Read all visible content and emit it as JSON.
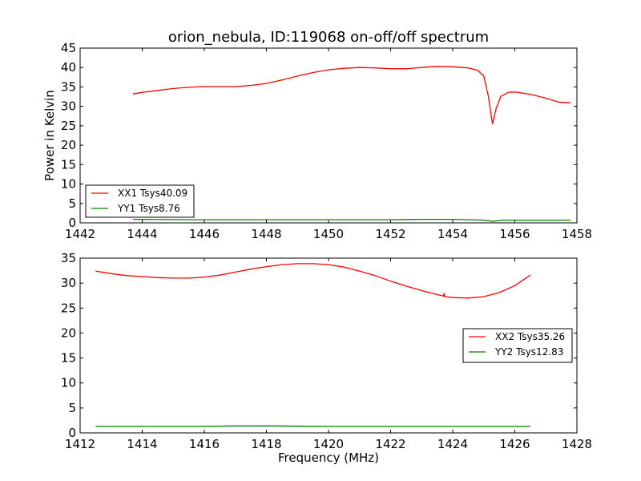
{
  "chart_data": {
    "title": "orion_nebula, ID:119068 on-off/off spectrum",
    "panels": [
      {
        "type": "line",
        "xlabel": "",
        "ylabel": "Power in Kelvin",
        "xlim": [
          1442,
          1458
        ],
        "ylim": [
          0,
          45
        ],
        "xticks": [
          1442,
          1444,
          1446,
          1448,
          1450,
          1452,
          1454,
          1456,
          1458
        ],
        "yticks": [
          0,
          5,
          10,
          15,
          20,
          25,
          30,
          35,
          40,
          45
        ],
        "legend_position": "lower-left",
        "series": [
          {
            "name": "XX1 Tsys40.09",
            "color": "#ff0000",
            "points": [
              [
                1443.7,
                33.2
              ],
              [
                1444.0,
                33.6
              ],
              [
                1444.5,
                34.1
              ],
              [
                1445.0,
                34.6
              ],
              [
                1445.5,
                34.9
              ],
              [
                1446.0,
                35.1
              ],
              [
                1446.5,
                35.1
              ],
              [
                1447.0,
                35.1
              ],
              [
                1447.5,
                35.4
              ],
              [
                1448.0,
                35.9
              ],
              [
                1448.5,
                36.8
              ],
              [
                1449.0,
                37.8
              ],
              [
                1449.5,
                38.7
              ],
              [
                1450.0,
                39.4
              ],
              [
                1450.5,
                39.8
              ],
              [
                1451.0,
                40.0
              ],
              [
                1451.5,
                39.9
              ],
              [
                1452.0,
                39.7
              ],
              [
                1452.5,
                39.7
              ],
              [
                1453.0,
                40.0
              ],
              [
                1453.5,
                40.3
              ],
              [
                1454.0,
                40.2
              ],
              [
                1454.5,
                39.9
              ],
              [
                1454.8,
                39.3
              ],
              [
                1455.0,
                37.8
              ],
              [
                1455.15,
                32.5
              ],
              [
                1455.28,
                25.5
              ],
              [
                1455.4,
                29.5
              ],
              [
                1455.55,
                32.6
              ],
              [
                1455.8,
                33.6
              ],
              [
                1456.0,
                33.7
              ],
              [
                1456.5,
                33.1
              ],
              [
                1457.0,
                32.1
              ],
              [
                1457.4,
                31.1
              ],
              [
                1457.8,
                30.9
              ]
            ]
          },
          {
            "name": "YY1 Tsys8.76",
            "color": "#008000",
            "points": [
              [
                1443.7,
                0.9
              ],
              [
                1446.0,
                0.8
              ],
              [
                1448.0,
                0.8
              ],
              [
                1450.0,
                0.8
              ],
              [
                1452.0,
                0.8
              ],
              [
                1453.0,
                0.9
              ],
              [
                1454.0,
                0.9
              ],
              [
                1455.0,
                0.7
              ],
              [
                1455.3,
                0.4
              ],
              [
                1455.6,
                0.7
              ],
              [
                1456.0,
                0.7
              ],
              [
                1457.8,
                0.7
              ]
            ]
          }
        ]
      },
      {
        "type": "line",
        "xlabel": "Frequency (MHz)",
        "ylabel": "",
        "xlim": [
          1412,
          1428
        ],
        "ylim": [
          0,
          35
        ],
        "xticks": [
          1412,
          1414,
          1416,
          1418,
          1420,
          1422,
          1424,
          1426,
          1428
        ],
        "yticks": [
          0,
          5,
          10,
          15,
          20,
          25,
          30,
          35
        ],
        "legend_position": "right",
        "series": [
          {
            "name": "XX2 Tsys35.26",
            "color": "#ff0000",
            "points": [
              [
                1412.5,
                32.4
              ],
              [
                1413.0,
                31.9
              ],
              [
                1413.5,
                31.5
              ],
              [
                1414.0,
                31.3
              ],
              [
                1414.5,
                31.1
              ],
              [
                1415.0,
                31.0
              ],
              [
                1415.5,
                31.0
              ],
              [
                1416.0,
                31.2
              ],
              [
                1416.5,
                31.6
              ],
              [
                1417.0,
                32.2
              ],
              [
                1417.5,
                32.8
              ],
              [
                1418.0,
                33.3
              ],
              [
                1418.5,
                33.7
              ],
              [
                1419.0,
                33.9
              ],
              [
                1419.5,
                33.9
              ],
              [
                1420.0,
                33.7
              ],
              [
                1420.5,
                33.2
              ],
              [
                1421.0,
                32.4
              ],
              [
                1421.5,
                31.5
              ],
              [
                1422.0,
                30.4
              ],
              [
                1422.5,
                29.4
              ],
              [
                1423.0,
                28.5
              ],
              [
                1423.5,
                27.7
              ],
              [
                1423.7,
                27.4
              ],
              [
                1423.72,
                27.9
              ],
              [
                1423.74,
                27.3
              ],
              [
                1424.0,
                27.1
              ],
              [
                1424.5,
                27.0
              ],
              [
                1425.0,
                27.3
              ],
              [
                1425.5,
                28.1
              ],
              [
                1426.0,
                29.5
              ],
              [
                1426.5,
                31.6
              ]
            ]
          },
          {
            "name": "YY2 Tsys12.83",
            "color": "#008000",
            "points": [
              [
                1412.5,
                1.3
              ],
              [
                1414.0,
                1.3
              ],
              [
                1416.0,
                1.3
              ],
              [
                1417.0,
                1.4
              ],
              [
                1418.0,
                1.4
              ],
              [
                1420.0,
                1.3
              ],
              [
                1422.0,
                1.3
              ],
              [
                1424.0,
                1.3
              ],
              [
                1426.5,
                1.3
              ]
            ]
          }
        ]
      }
    ]
  }
}
